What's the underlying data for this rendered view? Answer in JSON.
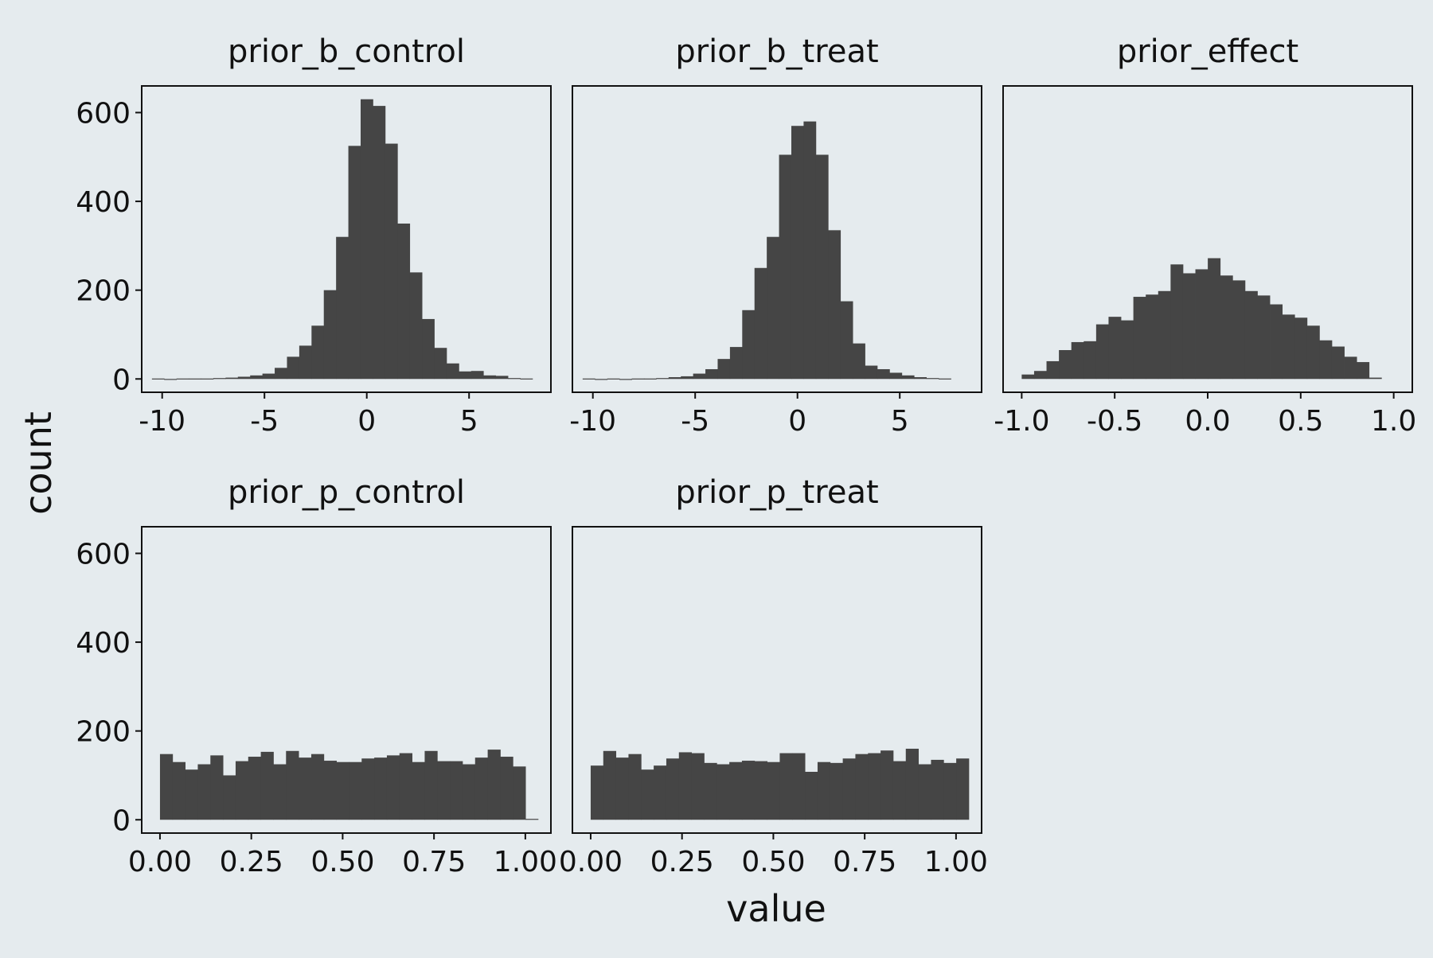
{
  "figure": {
    "xlabel": "value",
    "ylabel": "count",
    "colors": {
      "background": "#e5ebee",
      "bar": "#454545",
      "axis": "#111111"
    }
  },
  "chart_data": [
    {
      "type": "bar",
      "title": "prior_b_control",
      "xlim": [
        -11,
        9
      ],
      "ylim": [
        -30,
        660
      ],
      "x_ticks": [
        -10,
        -5,
        0,
        5
      ],
      "x_tick_labels": [
        "-10",
        "-5",
        "0",
        "5"
      ],
      "y_ticks": [
        0,
        200,
        400,
        600
      ],
      "y_tick_labels": [
        "0",
        "200",
        "400",
        "600"
      ],
      "bin_start": -10.5,
      "bin_width": 0.6,
      "values": [
        1,
        0,
        1,
        1,
        1,
        2,
        3,
        5,
        8,
        12,
        25,
        50,
        75,
        120,
        200,
        320,
        525,
        630,
        615,
        530,
        350,
        240,
        135,
        70,
        35,
        17,
        18,
        8,
        7,
        2,
        1
      ]
    },
    {
      "type": "bar",
      "title": "prior_b_treat",
      "xlim": [
        -11,
        9
      ],
      "ylim": [
        -30,
        660
      ],
      "x_ticks": [
        -10,
        -5,
        0,
        5
      ],
      "x_tick_labels": [
        "-10",
        "-5",
        "0",
        "5"
      ],
      "y_ticks": [
        0,
        200,
        400,
        600
      ],
      "y_tick_labels": [
        "0",
        "200",
        "400",
        "600"
      ],
      "bin_start": -10.5,
      "bin_width": 0.6,
      "values": [
        1,
        0,
        1,
        0,
        1,
        1,
        2,
        4,
        6,
        12,
        22,
        45,
        72,
        155,
        250,
        320,
        505,
        570,
        580,
        505,
        335,
        175,
        80,
        30,
        22,
        14,
        8,
        4,
        2,
        1
      ]
    },
    {
      "type": "bar",
      "title": "prior_effect",
      "xlim": [
        -1.1,
        1.1
      ],
      "ylim": [
        -30,
        660
      ],
      "x_ticks": [
        -1.0,
        -0.5,
        0.0,
        0.5,
        1.0
      ],
      "x_tick_labels": [
        "-1.0",
        "-0.5",
        "0.0",
        "0.5",
        "1.0"
      ],
      "y_ticks": [
        0,
        200,
        400,
        600
      ],
      "y_tick_labels": [
        "0",
        "200",
        "400",
        "600"
      ],
      "bin_start": -1.0,
      "bin_width": 0.0667,
      "values": [
        10,
        18,
        40,
        65,
        83,
        85,
        123,
        140,
        132,
        185,
        190,
        198,
        258,
        238,
        247,
        272,
        233,
        222,
        198,
        188,
        168,
        145,
        138,
        120,
        87,
        73,
        50,
        38,
        3
      ]
    },
    {
      "type": "bar",
      "title": "prior_p_control",
      "xlim": [
        -0.05,
        1.07
      ],
      "ylim": [
        -30,
        660
      ],
      "x_ticks": [
        0.0,
        0.25,
        0.5,
        0.75,
        1.0
      ],
      "x_tick_labels": [
        "0.00",
        "0.25",
        "0.50",
        "0.75",
        "1.00"
      ],
      "y_ticks": [
        0,
        200,
        400,
        600
      ],
      "y_tick_labels": [
        "0",
        "200",
        "400",
        "600"
      ],
      "bin_start": 0.0,
      "bin_width": 0.0345,
      "values": [
        148,
        130,
        113,
        125,
        145,
        100,
        132,
        142,
        153,
        125,
        155,
        140,
        148,
        133,
        130,
        130,
        138,
        140,
        145,
        150,
        130,
        155,
        132,
        132,
        125,
        140,
        158,
        142,
        120,
        2
      ]
    },
    {
      "type": "bar",
      "title": "prior_p_treat",
      "xlim": [
        -0.05,
        1.07
      ],
      "ylim": [
        -30,
        660
      ],
      "x_ticks": [
        0.0,
        0.25,
        0.5,
        0.75,
        1.0
      ],
      "x_tick_labels": [
        "0.00",
        "0.25",
        "0.50",
        "0.75",
        "1.00"
      ],
      "y_ticks": [
        0,
        200,
        400,
        600
      ],
      "y_tick_labels": [
        "0",
        "200",
        "400",
        "600"
      ],
      "bin_start": 0.0,
      "bin_width": 0.0345,
      "values": [
        122,
        155,
        140,
        148,
        113,
        122,
        138,
        152,
        150,
        128,
        125,
        130,
        133,
        132,
        130,
        150,
        150,
        108,
        130,
        128,
        138,
        148,
        150,
        156,
        132,
        160,
        125,
        135,
        128,
        138
      ]
    }
  ]
}
